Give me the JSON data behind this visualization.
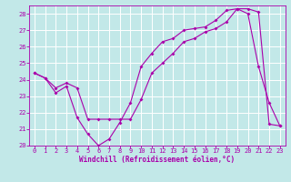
{
  "xlabel": "Windchill (Refroidissement éolien,°C)",
  "xlim": [
    -0.5,
    23.5
  ],
  "ylim": [
    20,
    28.5
  ],
  "xticks": [
    0,
    1,
    2,
    3,
    4,
    5,
    6,
    7,
    8,
    9,
    10,
    11,
    12,
    13,
    14,
    15,
    16,
    17,
    18,
    19,
    20,
    21,
    22,
    23
  ],
  "yticks": [
    20,
    21,
    22,
    23,
    24,
    25,
    26,
    27,
    28
  ],
  "bg_color": "#c2e8e8",
  "line_color": "#aa00aa",
  "grid_color": "#ffffff",
  "line1_x": [
    0,
    1,
    2,
    3,
    4,
    5,
    6,
    7,
    8,
    9,
    10,
    11,
    12,
    13,
    14,
    15,
    16,
    17,
    18,
    19,
    20,
    21,
    22,
    23
  ],
  "line1_y": [
    24.4,
    24.1,
    23.2,
    23.6,
    21.7,
    20.7,
    20.0,
    20.4,
    21.4,
    22.6,
    24.8,
    25.6,
    26.3,
    26.5,
    27.0,
    27.1,
    27.2,
    27.6,
    28.2,
    28.3,
    28.0,
    24.8,
    22.6,
    21.2
  ],
  "line2_x": [
    0,
    1,
    2,
    3,
    4,
    5,
    6,
    7,
    8,
    9,
    10,
    11,
    12,
    13,
    14,
    15,
    16,
    17,
    18,
    19,
    20,
    21,
    22,
    23
  ],
  "line2_y": [
    24.4,
    24.1,
    23.5,
    23.8,
    23.5,
    21.6,
    21.6,
    21.6,
    21.6,
    21.6,
    22.8,
    24.4,
    25.0,
    25.6,
    26.3,
    26.5,
    26.9,
    27.1,
    27.5,
    28.3,
    28.3,
    28.1,
    21.3,
    21.2
  ],
  "tick_fontsize": 5.0,
  "xlabel_fontsize": 5.5,
  "marker_size": 2.0
}
